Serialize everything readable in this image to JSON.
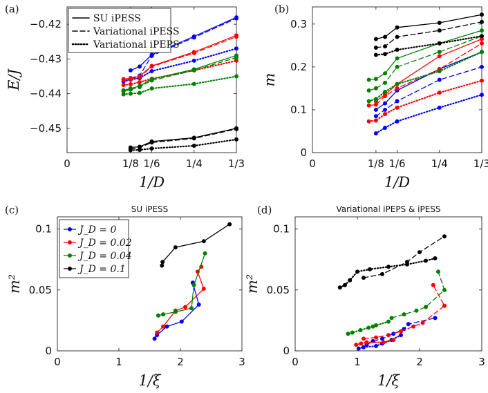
{
  "chart_data": [
    {
      "panel": "(a)",
      "type": "line",
      "title": "",
      "xlabel": "1/D",
      "ylabel": "E/J",
      "xlim": [
        0,
        0.3333
      ],
      "ylim": [
        -0.457,
        -0.415
      ],
      "xticks": [
        0,
        0.125,
        0.1667,
        0.25,
        0.3333
      ],
      "xtick_labels": [
        "0",
        "1/8",
        "1/6",
        "1/4",
        "1/3"
      ],
      "yticks": [
        -0.45,
        -0.44,
        -0.43,
        -0.42
      ],
      "ytick_labels": [
        "-0.45",
        "-0.44",
        "-0.43",
        "-0.42"
      ],
      "legend": {
        "position": "top-left",
        "entries": [
          {
            "label": "SU iPESS",
            "style": "solid"
          },
          {
            "label": "Variational iPESS",
            "style": "dashed"
          },
          {
            "label": "Variational iPEPS",
            "style": "dotted"
          }
        ]
      },
      "series": [
        {
          "name": "SU iPESS J_D=0",
          "color": "#0000ff",
          "style": "solid",
          "x": [
            0.125,
            0.1429,
            0.1667,
            0.25,
            0.3333
          ],
          "y": [
            -0.4333,
            -0.4322,
            -0.4288,
            -0.4235,
            -0.418
          ]
        },
        {
          "name": "Var iPESS J_D=0",
          "color": "#0000ff",
          "style": "dashed",
          "x": [
            0.125,
            0.1429,
            0.1667,
            0.25,
            0.3333
          ],
          "y": [
            -0.4355,
            -0.4348,
            -0.4291,
            -0.4238,
            -0.4183
          ]
        },
        {
          "name": "Var iPEPS J_D=0",
          "color": "#0000ff",
          "style": "dotted",
          "x": [
            0.1111,
            0.125,
            0.1429,
            0.1667,
            0.25,
            0.3333
          ],
          "y": [
            -0.4365,
            -0.436,
            -0.4355,
            -0.4335,
            -0.4305,
            -0.427
          ]
        },
        {
          "name": "SU iPESS J_D=0.02",
          "color": "#ff0000",
          "style": "solid",
          "x": [
            0.1111,
            0.125,
            0.1429,
            0.1667,
            0.25,
            0.3333
          ],
          "y": [
            -0.4358,
            -0.4356,
            -0.435,
            -0.432,
            -0.428,
            -0.4232
          ]
        },
        {
          "name": "Var iPESS J_D=0.02",
          "color": "#ff0000",
          "style": "dashed",
          "x": [
            0.1111,
            0.125,
            0.1429,
            0.1667,
            0.25,
            0.3333
          ],
          "y": [
            -0.436,
            -0.4358,
            -0.4352,
            -0.4322,
            -0.4283,
            -0.4236
          ]
        },
        {
          "name": "Var iPEPS J_D=0.02",
          "color": "#ff0000",
          "style": "dotted",
          "x": [
            0.1111,
            0.125,
            0.1429,
            0.1667,
            0.25,
            0.3333
          ],
          "y": [
            -0.4375,
            -0.4373,
            -0.4367,
            -0.4357,
            -0.4333,
            -0.4305
          ]
        },
        {
          "name": "SU iPESS J_D=0.04",
          "color": "#008000",
          "style": "solid",
          "x": [
            0.1111,
            0.125,
            0.1429,
            0.1667,
            0.25,
            0.3333
          ],
          "y": [
            -0.439,
            -0.4385,
            -0.4378,
            -0.4358,
            -0.433,
            -0.429
          ]
        },
        {
          "name": "Var iPESS J_D=0.04",
          "color": "#008000",
          "style": "dashed",
          "x": [
            0.1111,
            0.125,
            0.1429,
            0.1667,
            0.25,
            0.3333
          ],
          "y": [
            -0.4393,
            -0.4388,
            -0.4381,
            -0.4362,
            -0.4333,
            -0.4296
          ]
        },
        {
          "name": "Var iPEPS J_D=0.04",
          "color": "#008000",
          "style": "dotted",
          "x": [
            0.1111,
            0.125,
            0.1429,
            0.1667,
            0.25,
            0.3333
          ],
          "y": [
            -0.4402,
            -0.44,
            -0.4398,
            -0.4385,
            -0.4372,
            -0.435
          ]
        },
        {
          "name": "SU iPESS J_D=0.1",
          "color": "#000000",
          "style": "solid",
          "x": [
            0.125,
            0.1429,
            0.1667,
            0.25,
            0.3333
          ],
          "y": [
            -0.4555,
            -0.4553,
            -0.4538,
            -0.4527,
            -0.45
          ]
        },
        {
          "name": "Var iPESS J_D=0.1",
          "color": "#000000",
          "style": "dashed",
          "x": [
            0.125,
            0.1429,
            0.1667,
            0.25,
            0.3333
          ],
          "y": [
            -0.456,
            -0.4555,
            -0.4541,
            -0.4529,
            -0.4502
          ]
        },
        {
          "name": "Var iPEPS J_D=0.1",
          "color": "#000000",
          "style": "dotted",
          "x": [
            0.125,
            0.1429,
            0.1667,
            0.25,
            0.3333
          ],
          "y": [
            -0.4563,
            -0.4562,
            -0.4558,
            -0.455,
            -0.4532
          ]
        }
      ]
    },
    {
      "panel": "(b)",
      "type": "line",
      "title": "",
      "xlabel": "1/D",
      "ylabel": "m",
      "xlim": [
        0,
        0.3333
      ],
      "ylim": [
        0,
        0.34
      ],
      "xticks": [
        0,
        0.125,
        0.1667,
        0.25,
        0.3333
      ],
      "xtick_labels": [
        "0",
        "1/8",
        "1/6",
        "1/4",
        "1/3"
      ],
      "yticks": [
        0,
        0.1,
        0.2,
        0.3
      ],
      "ytick_labels": [
        "0",
        "0.1",
        "0.2",
        "0.3"
      ],
      "series": [
        {
          "name": "SU iPESS J_D=0",
          "color": "#0000ff",
          "style": "solid",
          "x": [
            0.125,
            0.1429,
            0.1667,
            0.25,
            0.3333
          ],
          "y": [
            0.1,
            0.115,
            0.145,
            0.195,
            0.235
          ]
        },
        {
          "name": "Var iPESS J_D=0",
          "color": "#0000ff",
          "style": "dashed",
          "x": [
            0.125,
            0.1429,
            0.1667,
            0.25,
            0.3333
          ],
          "y": [
            0.085,
            0.1,
            0.12,
            0.17,
            0.2
          ]
        },
        {
          "name": "Var iPEPS J_D=0",
          "color": "#0000ff",
          "style": "dotted",
          "x": [
            0.125,
            0.1429,
            0.1667,
            0.25,
            0.3333
          ],
          "y": [
            0.045,
            0.058,
            0.073,
            0.105,
            0.135
          ]
        },
        {
          "name": "SU iPESS J_D=0.02",
          "color": "#ff0000",
          "style": "solid",
          "x": [
            0.125,
            0.1429,
            0.1667,
            0.25,
            0.3333
          ],
          "y": [
            0.12,
            0.135,
            0.16,
            0.225,
            0.265
          ]
        },
        {
          "name": "Var iPESS J_D=0.02",
          "color": "#ff0000",
          "style": "dashed",
          "x": [
            0.1111,
            0.125,
            0.1429,
            0.1667,
            0.25,
            0.3333
          ],
          "y": [
            0.11,
            0.112,
            0.132,
            0.15,
            0.195,
            0.255
          ]
        },
        {
          "name": "Var iPEPS J_D=0.02",
          "color": "#ff0000",
          "style": "dotted",
          "x": [
            0.1111,
            0.125,
            0.1429,
            0.1667,
            0.25,
            0.3333
          ],
          "y": [
            0.073,
            0.075,
            0.09,
            0.105,
            0.14,
            0.168
          ]
        },
        {
          "name": "SU iPESS J_D=0.04",
          "color": "#008000",
          "style": "solid",
          "x": [
            0.1111,
            0.125,
            0.1429,
            0.1667,
            0.25,
            0.3333
          ],
          "y": [
            0.17,
            0.172,
            0.185,
            0.22,
            0.255,
            0.285
          ]
        },
        {
          "name": "Var iPESS J_D=0.04",
          "color": "#008000",
          "style": "dashed",
          "x": [
            0.1111,
            0.125,
            0.1429,
            0.1667,
            0.25,
            0.3333
          ],
          "y": [
            0.145,
            0.15,
            0.163,
            0.2,
            0.235,
            0.272
          ]
        },
        {
          "name": "Var iPEPS J_D=0.04",
          "color": "#008000",
          "style": "dotted",
          "x": [
            0.1111,
            0.125,
            0.1429,
            0.1667,
            0.25,
            0.3333
          ],
          "y": [
            0.12,
            0.125,
            0.142,
            0.16,
            0.19,
            0.235
          ]
        },
        {
          "name": "SU iPESS J_D=0.1",
          "color": "#000000",
          "style": "solid",
          "x": [
            0.125,
            0.1429,
            0.1667,
            0.25,
            0.3333
          ],
          "y": [
            0.265,
            0.27,
            0.292,
            0.303,
            0.322
          ]
        },
        {
          "name": "Var iPESS J_D=0.1",
          "color": "#000000",
          "style": "dashed",
          "x": [
            0.125,
            0.1429,
            0.1667,
            0.25,
            0.3333
          ],
          "y": [
            0.245,
            0.248,
            0.27,
            0.285,
            0.305
          ]
        },
        {
          "name": "Var iPEPS J_D=0.1",
          "color": "#000000",
          "style": "dotted",
          "x": [
            0.125,
            0.1429,
            0.1667,
            0.25,
            0.3333
          ],
          "y": [
            0.228,
            0.23,
            0.24,
            0.255,
            0.272
          ]
        }
      ]
    },
    {
      "panel": "(c)",
      "type": "line",
      "title": "SU iPESS",
      "xlabel": "1/ξ",
      "ylabel": "m²",
      "xlim": [
        0,
        3
      ],
      "ylim": [
        0,
        0.11
      ],
      "xticks": [
        0,
        1,
        2,
        3
      ],
      "xtick_labels": [
        "0",
        "1",
        "2",
        "3"
      ],
      "yticks": [
        0,
        0.05,
        0.1
      ],
      "ytick_labels": [
        "0",
        "0.05",
        "0.1"
      ],
      "legend": {
        "position": "top-left",
        "entries": [
          {
            "label": "J_D = 0",
            "color": "#0000ff"
          },
          {
            "label": "J_D = 0.02",
            "color": "#ff0000"
          },
          {
            "label": "J_D = 0.04",
            "color": "#008000"
          },
          {
            "label": "J_D = 0.1",
            "color": "#000000"
          }
        ]
      },
      "series": [
        {
          "name": "J_D=0",
          "color": "#0000ff",
          "style": "solid",
          "x": [
            1.58,
            1.62,
            1.78,
            2.02,
            2.3,
            2.2
          ],
          "y": [
            0.01,
            0.013,
            0.02,
            0.024,
            0.038,
            0.056
          ]
        },
        {
          "name": "J_D=0.02",
          "color": "#ff0000",
          "style": "solid",
          "x": [
            1.62,
            1.72,
            1.92,
            2.08,
            2.38,
            2.28,
            2.34
          ],
          "y": [
            0.015,
            0.02,
            0.033,
            0.036,
            0.051,
            0.065,
            0.069
          ]
        },
        {
          "name": "J_D=0.04",
          "color": "#008000",
          "style": "solid",
          "x": [
            1.64,
            1.72,
            1.92,
            2.18,
            2.22,
            2.4
          ],
          "y": [
            0.029,
            0.03,
            0.032,
            0.035,
            0.054,
            0.08
          ]
        },
        {
          "name": "J_D=0.1",
          "color": "#000000",
          "style": "solid",
          "x": [
            1.7,
            1.71,
            1.92,
            2.38,
            2.8
          ],
          "y": [
            0.07,
            0.073,
            0.085,
            0.09,
            0.104
          ]
        }
      ]
    },
    {
      "panel": "(d)",
      "type": "line",
      "title": "Variational iPEPS & iPESS",
      "xlabel": "1/ξ",
      "ylabel": "m²",
      "xlim": [
        0,
        3
      ],
      "ylim": [
        0,
        0.11
      ],
      "xticks": [
        0,
        1,
        2,
        3
      ],
      "xtick_labels": [
        "0",
        "1",
        "2",
        "3"
      ],
      "yticks": [
        0,
        0.05,
        0.1
      ],
      "ytick_labels": [
        "0",
        "0.05",
        "0.1"
      ],
      "series": [
        {
          "name": "Var iPESS J_D=0",
          "color": "#0000ff",
          "style": "dashed",
          "x": [
            1.15,
            1.25,
            1.4,
            1.58,
            1.75,
            1.82,
            2.25
          ],
          "y": [
            0.005,
            0.008,
            0.01,
            0.014,
            0.018,
            0.022,
            0.027
          ]
        },
        {
          "name": "Var iPEPS J_D=0",
          "color": "#0000ff",
          "style": "dotted",
          "x": [
            1.02,
            1.1,
            1.3,
            1.4,
            1.55,
            1.7
          ],
          "y": [
            0.002,
            0.003,
            0.004,
            0.006,
            0.009,
            0.013
          ]
        },
        {
          "name": "Var iPESS J_D=0.02",
          "color": "#ff0000",
          "style": "dashed",
          "x": [
            1.1,
            1.3,
            1.5,
            1.7,
            1.9,
            2.05,
            2.4,
            2.22
          ],
          "y": [
            0.01,
            0.011,
            0.013,
            0.016,
            0.02,
            0.023,
            0.037,
            0.054
          ]
        },
        {
          "name": "Var iPEPS J_D=0.02",
          "color": "#ff0000",
          "style": "dotted",
          "x": [
            0.98,
            1.06,
            1.15,
            1.42,
            1.58
          ],
          "y": [
            0.005,
            0.006,
            0.007,
            0.007,
            0.009
          ]
        },
        {
          "name": "Var iPESS J_D=0.04",
          "color": "#008000",
          "style": "dashed",
          "x": [
            1.55,
            1.75,
            1.95,
            2.1,
            2.4,
            2.3
          ],
          "y": [
            0.027,
            0.03,
            0.033,
            0.036,
            0.05,
            0.065
          ]
        },
        {
          "name": "Var iPEPS J_D=0.04",
          "color": "#008000",
          "style": "dotted",
          "x": [
            0.85,
            0.92,
            1.05,
            1.18,
            1.25,
            1.3,
            1.5
          ],
          "y": [
            0.014,
            0.015,
            0.017,
            0.019,
            0.02,
            0.021,
            0.024
          ]
        },
        {
          "name": "Var iPESS J_D=0.1",
          "color": "#000000",
          "style": "dashed",
          "x": [
            1.1,
            1.4,
            1.8,
            2.0,
            2.4
          ],
          "y": [
            0.06,
            0.063,
            0.073,
            0.081,
            0.094
          ]
        },
        {
          "name": "Var iPEPS J_D=0.1",
          "color": "#000000",
          "style": "dotted",
          "x": [
            0.72,
            0.8,
            0.88,
            1.0,
            1.2,
            1.5,
            1.8,
            2.1,
            2.25
          ],
          "y": [
            0.052,
            0.054,
            0.058,
            0.065,
            0.067,
            0.069,
            0.071,
            0.074,
            0.076
          ]
        }
      ]
    }
  ]
}
